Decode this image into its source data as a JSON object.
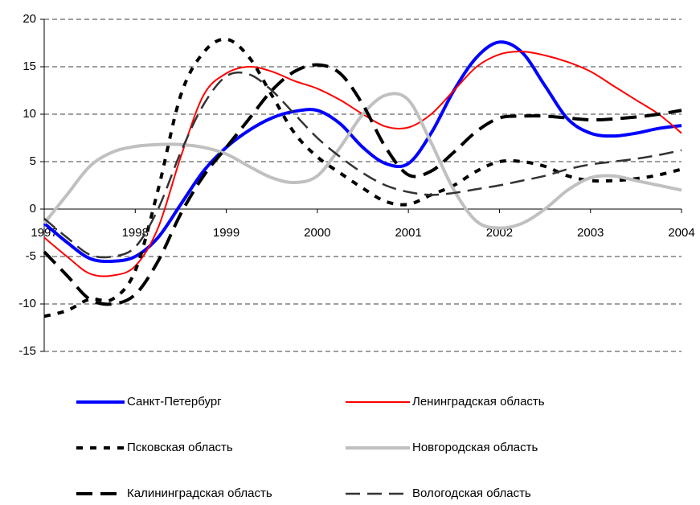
{
  "chart_data": {
    "type": "line",
    "x": [
      1997,
      1997.25,
      1997.5,
      1997.75,
      1998,
      1998.25,
      1998.5,
      1998.75,
      1999,
      1999.25,
      1999.5,
      1999.75,
      2000,
      2000.25,
      2000.5,
      2000.75,
      2001,
      2001.25,
      2001.5,
      2001.75,
      2002,
      2002.25,
      2002.5,
      2002.75,
      2003,
      2003.25,
      2003.5,
      2003.75,
      2004
    ],
    "xlim": [
      1997,
      2004
    ],
    "xticks": [
      1997,
      1998,
      1999,
      2000,
      2001,
      2002,
      2003,
      2004
    ],
    "ylim": [
      -15,
      20
    ],
    "yticks": [
      -15,
      -10,
      -5,
      0,
      5,
      10,
      15,
      20
    ],
    "grid": true,
    "series": [
      {
        "name": "Санкт-Петербург",
        "color": "#0000ff",
        "values": [
          -1.5,
          -3.5,
          -5.2,
          -5.5,
          -5,
          -3,
          0.5,
          4,
          6.5,
          8.3,
          9.6,
          10.3,
          10.4,
          9,
          6.5,
          4.8,
          4.8,
          8,
          12.5,
          16,
          17.6,
          16.5,
          13,
          9.5,
          8,
          7.7,
          8,
          8.5,
          8.8
        ]
      },
      {
        "name": "Ленинградская область",
        "color": "#ff0000",
        "values": [
          -3,
          -5,
          -6.8,
          -7,
          -6,
          -2,
          5.5,
          12,
          14.3,
          15,
          14.5,
          13.5,
          12.7,
          11.5,
          10,
          8.7,
          8.6,
          10,
          12.5,
          15,
          16.3,
          16.6,
          16.2,
          15.5,
          14.5,
          13,
          11.5,
          10,
          8
        ]
      },
      {
        "name": "Псковская область",
        "color": "#000000",
        "values": [
          -11.3,
          -10.7,
          -9.5,
          -9.5,
          -6.5,
          2,
          12,
          16.5,
          17.9,
          16,
          12,
          8,
          5.5,
          3.8,
          2.2,
          0.8,
          0.5,
          1.5,
          2.5,
          4,
          5,
          5,
          4.5,
          3.5,
          3,
          3,
          3.2,
          3.6,
          4.2
        ]
      },
      {
        "name": "Новгородская область",
        "color": "#c0c0c0",
        "values": [
          -1.5,
          1.5,
          4.5,
          6,
          6.6,
          6.8,
          6.8,
          6.5,
          5.8,
          4.5,
          3.3,
          2.8,
          3.5,
          6.5,
          10,
          12,
          11.5,
          7,
          2,
          -1.3,
          -2,
          -1.5,
          0,
          2,
          3.3,
          3.5,
          3,
          2.5,
          2
        ]
      },
      {
        "name": "Калининградская область",
        "color": "#000000",
        "values": [
          -4.5,
          -7,
          -9.5,
          -10,
          -9,
          -5.5,
          -0.5,
          3.5,
          6.5,
          9.5,
          12.5,
          14.5,
          15.2,
          14.3,
          11,
          6.5,
          3.6,
          4,
          6,
          8.2,
          9.6,
          9.8,
          9.8,
          9.6,
          9.4,
          9.5,
          9.7,
          10,
          10.4
        ]
      },
      {
        "name": "Вологодская область",
        "color": "#333333",
        "values": [
          -1,
          -3,
          -4.8,
          -5,
          -4,
          0,
          6,
          11,
          14,
          14.2,
          12.5,
          10,
          7.5,
          5.5,
          3.8,
          2.5,
          1.8,
          1.5,
          1.7,
          2.1,
          2.5,
          3,
          3.5,
          4.2,
          4.7,
          5,
          5.3,
          5.7,
          6.2
        ]
      }
    ]
  }
}
